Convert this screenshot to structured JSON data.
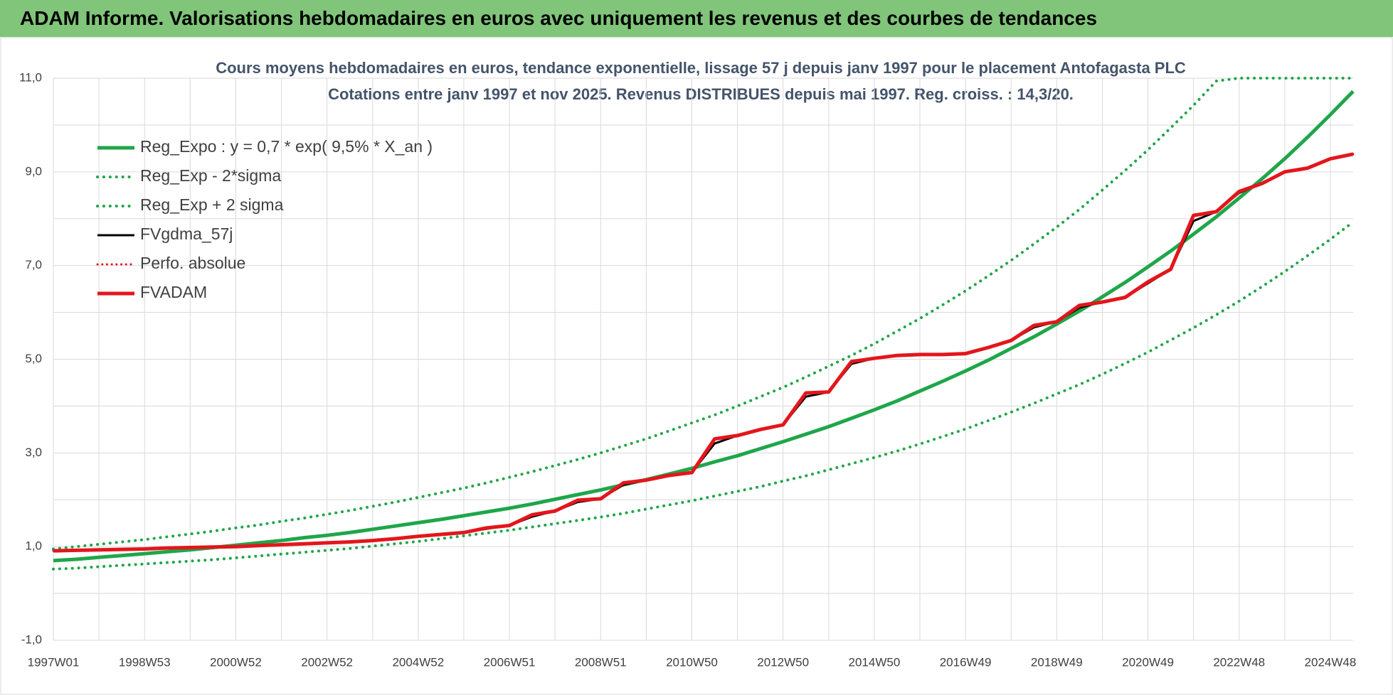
{
  "header": {
    "title": "ADAM Informe. Valorisations hebdomadaires en euros avec uniquement les revenus et des courbes de tendances"
  },
  "chart_data": {
    "type": "line",
    "title": "Cours moyens hebdomadaires en euros, tendance exponentielle, lissage 57 j depuis janv 1997  pour le placement Antofagasta PLC",
    "subtitle": "Cotations entre janv 1997 et nov 2025. Revenus DISTRIBUES depuis mai 1997.  Reg. croiss. : 14,3/20.",
    "categories": [
      "1997W01",
      null,
      null,
      null,
      "1998W53",
      null,
      null,
      null,
      "2000W52",
      null,
      null,
      null,
      "2002W52",
      null,
      null,
      null,
      "2004W52",
      null,
      null,
      null,
      "2006W51",
      null,
      null,
      null,
      "2008W51",
      null,
      null,
      null,
      "2010W50",
      null,
      null,
      null,
      "2012W50",
      null,
      null,
      null,
      "2014W50",
      null,
      null,
      null,
      "2016W49",
      null,
      null,
      null,
      "2018W49",
      null,
      null,
      null,
      "2020W49",
      null,
      null,
      null,
      "2022W48",
      null,
      null,
      null,
      "2024W48",
      null
    ],
    "ylim": [
      -1,
      11
    ],
    "yticks": [
      {
        "value": -1,
        "label": "-1,0"
      },
      {
        "value": 1,
        "label": "1,0"
      },
      {
        "value": 3,
        "label": "3,0"
      },
      {
        "value": 5,
        "label": "5,0"
      },
      {
        "value": 7,
        "label": "7,0"
      },
      {
        "value": 9,
        "label": "9,0"
      },
      {
        "value": 11,
        "label": "11,0"
      }
    ],
    "ygrid": [
      0,
      2,
      4,
      6,
      8,
      10
    ],
    "grid": true,
    "legend": "top-left",
    "series": [
      {
        "name": "Reg_Expo : y = 0,7 * exp( 9,5% *  X_an )",
        "color": "#1fa64a",
        "style": "solid",
        "width": 5,
        "values": [
          0.7,
          0.73,
          0.77,
          0.81,
          0.85,
          0.89,
          0.93,
          0.98,
          1.03,
          1.08,
          1.13,
          1.19,
          1.24,
          1.3,
          1.37,
          1.44,
          1.51,
          1.58,
          1.66,
          1.74,
          1.82,
          1.91,
          2.01,
          2.11,
          2.21,
          2.32,
          2.43,
          2.55,
          2.67,
          2.81,
          2.94,
          3.09,
          3.24,
          3.4,
          3.56,
          3.74,
          3.92,
          4.11,
          4.32,
          4.53,
          4.75,
          4.98,
          5.23,
          5.48,
          5.75,
          6.03,
          6.33,
          6.64,
          6.97,
          7.31,
          7.67,
          8.04,
          8.44,
          8.85,
          9.28,
          9.74,
          10.22,
          10.72
        ]
      },
      {
        "name": "Reg_Exp - 2*sigma",
        "color": "#1fa64a",
        "style": "dotted",
        "width": 4,
        "values": [
          0.52,
          0.54,
          0.57,
          0.6,
          0.63,
          0.66,
          0.69,
          0.72,
          0.76,
          0.8,
          0.84,
          0.88,
          0.92,
          0.96,
          1.01,
          1.06,
          1.11,
          1.17,
          1.23,
          1.29,
          1.35,
          1.42,
          1.49,
          1.56,
          1.63,
          1.71,
          1.8,
          1.89,
          1.98,
          2.08,
          2.18,
          2.28,
          2.4,
          2.51,
          2.64,
          2.77,
          2.9,
          3.04,
          3.19,
          3.35,
          3.51,
          3.69,
          3.87,
          4.06,
          4.26,
          4.46,
          4.68,
          4.91,
          5.15,
          5.41,
          5.67,
          5.95,
          6.24,
          6.55,
          6.87,
          7.21,
          7.56,
          7.93
        ]
      },
      {
        "name": "Reg_Exp + 2 sigma",
        "color": "#1fa64a",
        "style": "dotted",
        "width": 4,
        "values": [
          0.95,
          1.0,
          1.05,
          1.1,
          1.15,
          1.21,
          1.27,
          1.33,
          1.4,
          1.46,
          1.54,
          1.61,
          1.69,
          1.77,
          1.86,
          1.95,
          2.05,
          2.15,
          2.25,
          2.36,
          2.48,
          2.6,
          2.73,
          2.86,
          3.0,
          3.15,
          3.3,
          3.47,
          3.64,
          3.81,
          4.0,
          4.2,
          4.4,
          4.62,
          4.85,
          5.08,
          5.33,
          5.6,
          5.87,
          6.16,
          6.46,
          6.78,
          7.11,
          7.46,
          7.82,
          8.2,
          8.61,
          9.03,
          9.47,
          9.94,
          10.42,
          10.94,
          11,
          11,
          11,
          11,
          11,
          11
        ]
      },
      {
        "name": "FVgdma_57j",
        "color": "#000000",
        "style": "solid",
        "width": 3,
        "values": [
          0.91,
          0.92,
          0.93,
          0.94,
          0.95,
          0.97,
          0.98,
          0.99,
          1.0,
          1.02,
          1.04,
          1.06,
          1.08,
          1.1,
          1.13,
          1.17,
          1.22,
          1.26,
          1.3,
          1.38,
          1.45,
          1.64,
          1.76,
          1.95,
          2.02,
          2.32,
          2.42,
          2.52,
          2.58,
          3.2,
          3.37,
          3.5,
          3.6,
          4.2,
          4.3,
          4.9,
          5.02,
          5.08,
          5.1,
          5.1,
          5.12,
          5.25,
          5.4,
          5.68,
          5.8,
          6.1,
          6.22,
          6.32,
          6.62,
          6.92,
          7.95,
          8.15,
          8.55,
          8.75,
          9.0,
          9.08,
          9.28,
          9.38
        ]
      },
      {
        "name": "Perfo. absolue",
        "color": "#e3161c",
        "style": "dotted",
        "width": 3,
        "values": [
          0.91,
          0.92,
          0.93,
          0.94,
          0.95,
          0.97,
          0.98,
          0.99,
          1.0,
          1.02,
          1.04,
          1.06,
          1.08,
          1.1,
          1.13,
          1.17,
          1.22,
          1.26,
          1.3,
          1.4,
          1.45,
          1.68,
          1.76,
          1.99,
          2.02,
          2.36,
          2.42,
          2.52,
          2.58,
          3.3,
          3.37,
          3.5,
          3.6,
          4.28,
          4.3,
          4.95,
          5.02,
          5.08,
          5.1,
          5.1,
          5.12,
          5.25,
          5.4,
          5.72,
          5.8,
          6.15,
          6.22,
          6.32,
          6.65,
          6.92,
          8.07,
          8.15,
          8.58,
          8.75,
          9.0,
          9.08,
          9.28,
          9.38
        ]
      },
      {
        "name": "FVADAM",
        "color": "#e3161c",
        "style": "solid",
        "width": 5,
        "values": [
          0.91,
          0.92,
          0.93,
          0.94,
          0.95,
          0.97,
          0.98,
          0.99,
          1.0,
          1.02,
          1.04,
          1.06,
          1.08,
          1.1,
          1.13,
          1.17,
          1.22,
          1.26,
          1.3,
          1.4,
          1.45,
          1.68,
          1.76,
          1.99,
          2.02,
          2.36,
          2.42,
          2.52,
          2.58,
          3.3,
          3.37,
          3.5,
          3.6,
          4.28,
          4.3,
          4.95,
          5.02,
          5.08,
          5.1,
          5.1,
          5.12,
          5.25,
          5.4,
          5.72,
          5.8,
          6.15,
          6.22,
          6.32,
          6.65,
          6.92,
          8.07,
          8.15,
          8.58,
          8.75,
          9.0,
          9.08,
          9.28,
          9.38
        ]
      }
    ]
  }
}
